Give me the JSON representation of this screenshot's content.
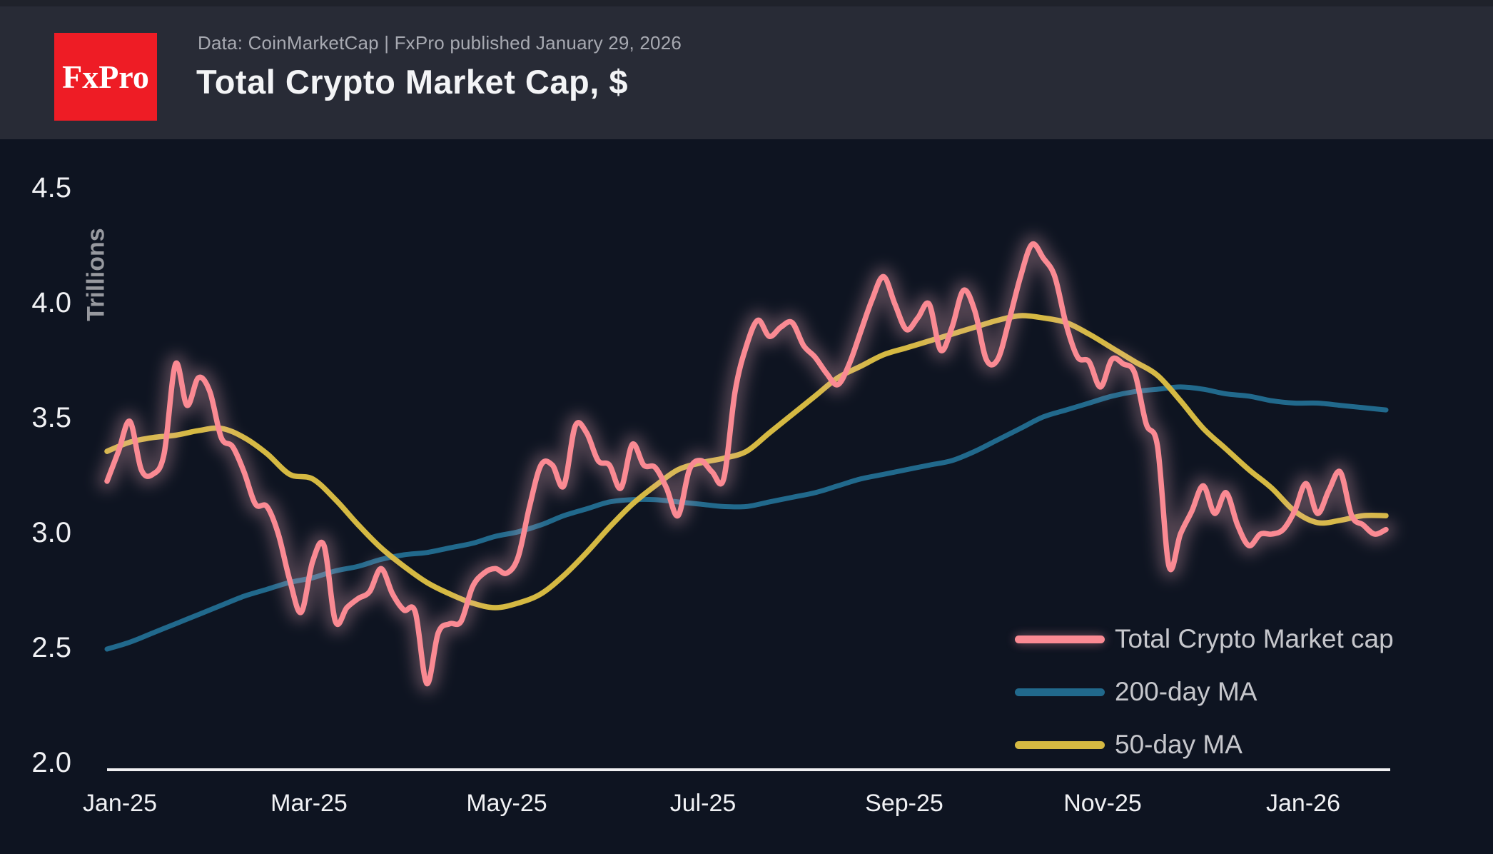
{
  "header": {
    "logo_text": "FxPro",
    "source_line": "Data: CoinMarketCap | FxPro published January 29, 2026",
    "title": "Total Crypto Market Cap, $"
  },
  "colors": {
    "background": "#0e1421",
    "header_bar": "#282b36",
    "logo_red": "#ee1c25",
    "axis_line": "#f0f0f2",
    "market_cap_pink": "#fa8a93",
    "market_cap_glow": "#efb0bd",
    "ma200_teal": "#21698c",
    "ma50_yellow": "#d5b942"
  },
  "chart_data": {
    "type": "line",
    "title": "Total Crypto Market Cap, $",
    "ylabel": "Trillions",
    "ylim": [
      2.0,
      4.5
    ],
    "grid": false,
    "legend_position": "bottom-right",
    "yticks": [
      "4.5",
      "4.0",
      "3.5",
      "3.0",
      "2.5",
      "2.0"
    ],
    "ytick_values": [
      4.5,
      4.0,
      3.5,
      3.0,
      2.5,
      2.0
    ],
    "xticks": [
      "Jan-25",
      "Mar-25",
      "May-25",
      "Jul-25",
      "Sep-25",
      "Nov-25",
      "Jan-26"
    ],
    "x_unit": "chart x pixel (Jan-25 tick = 168, ~4.54 px/day)",
    "series": [
      {
        "name": "Total Crypto Market cap",
        "color": "#fa8a93",
        "glow": true,
        "width": 7.5,
        "points": [
          [
            150,
            3.23
          ],
          [
            166,
            3.36
          ],
          [
            182,
            3.49
          ],
          [
            198,
            3.28
          ],
          [
            214,
            3.26
          ],
          [
            230,
            3.35
          ],
          [
            246,
            3.74
          ],
          [
            262,
            3.56
          ],
          [
            278,
            3.68
          ],
          [
            294,
            3.62
          ],
          [
            310,
            3.42
          ],
          [
            326,
            3.38
          ],
          [
            342,
            3.27
          ],
          [
            358,
            3.13
          ],
          [
            374,
            3.12
          ],
          [
            390,
            3.0
          ],
          [
            406,
            2.8
          ],
          [
            422,
            2.66
          ],
          [
            438,
            2.88
          ],
          [
            454,
            2.95
          ],
          [
            470,
            2.62
          ],
          [
            486,
            2.68
          ],
          [
            502,
            2.72
          ],
          [
            518,
            2.75
          ],
          [
            534,
            2.85
          ],
          [
            550,
            2.74
          ],
          [
            566,
            2.67
          ],
          [
            582,
            2.66
          ],
          [
            598,
            2.35
          ],
          [
            614,
            2.57
          ],
          [
            630,
            2.61
          ],
          [
            646,
            2.62
          ],
          [
            662,
            2.77
          ],
          [
            678,
            2.83
          ],
          [
            694,
            2.85
          ],
          [
            710,
            2.83
          ],
          [
            726,
            2.9
          ],
          [
            742,
            3.12
          ],
          [
            758,
            3.3
          ],
          [
            774,
            3.3
          ],
          [
            790,
            3.21
          ],
          [
            806,
            3.47
          ],
          [
            822,
            3.44
          ],
          [
            838,
            3.32
          ],
          [
            854,
            3.3
          ],
          [
            870,
            3.2
          ],
          [
            886,
            3.39
          ],
          [
            902,
            3.3
          ],
          [
            918,
            3.29
          ],
          [
            934,
            3.2
          ],
          [
            950,
            3.08
          ],
          [
            966,
            3.28
          ],
          [
            982,
            3.32
          ],
          [
            998,
            3.27
          ],
          [
            1014,
            3.24
          ],
          [
            1030,
            3.62
          ],
          [
            1046,
            3.82
          ],
          [
            1062,
            3.93
          ],
          [
            1078,
            3.86
          ],
          [
            1094,
            3.9
          ],
          [
            1110,
            3.92
          ],
          [
            1126,
            3.82
          ],
          [
            1142,
            3.77
          ],
          [
            1158,
            3.7
          ],
          [
            1174,
            3.65
          ],
          [
            1190,
            3.74
          ],
          [
            1206,
            3.88
          ],
          [
            1222,
            4.02
          ],
          [
            1238,
            4.12
          ],
          [
            1254,
            4.0
          ],
          [
            1270,
            3.89
          ],
          [
            1286,
            3.94
          ],
          [
            1302,
            4.0
          ],
          [
            1318,
            3.8
          ],
          [
            1334,
            3.9
          ],
          [
            1350,
            4.06
          ],
          [
            1366,
            3.97
          ],
          [
            1382,
            3.76
          ],
          [
            1398,
            3.76
          ],
          [
            1414,
            3.93
          ],
          [
            1430,
            4.12
          ],
          [
            1446,
            4.26
          ],
          [
            1462,
            4.2
          ],
          [
            1478,
            4.12
          ],
          [
            1494,
            3.91
          ],
          [
            1510,
            3.77
          ],
          [
            1526,
            3.75
          ],
          [
            1542,
            3.64
          ],
          [
            1558,
            3.76
          ],
          [
            1574,
            3.74
          ],
          [
            1590,
            3.7
          ],
          [
            1606,
            3.48
          ],
          [
            1622,
            3.38
          ],
          [
            1638,
            2.86
          ],
          [
            1654,
            3.0
          ],
          [
            1670,
            3.1
          ],
          [
            1686,
            3.21
          ],
          [
            1702,
            3.09
          ],
          [
            1718,
            3.18
          ],
          [
            1734,
            3.04
          ],
          [
            1750,
            2.95
          ],
          [
            1766,
            3.0
          ],
          [
            1782,
            3.0
          ],
          [
            1798,
            3.02
          ],
          [
            1814,
            3.1
          ],
          [
            1830,
            3.22
          ],
          [
            1846,
            3.09
          ],
          [
            1862,
            3.19
          ],
          [
            1878,
            3.27
          ],
          [
            1894,
            3.08
          ],
          [
            1910,
            3.04
          ],
          [
            1926,
            3.0
          ],
          [
            1942,
            3.02
          ]
        ]
      },
      {
        "name": "200-day MA",
        "color": "#21698c",
        "glow": false,
        "width": 7,
        "points": [
          [
            150,
            2.5
          ],
          [
            182,
            2.53
          ],
          [
            214,
            2.57
          ],
          [
            246,
            2.61
          ],
          [
            278,
            2.65
          ],
          [
            310,
            2.69
          ],
          [
            342,
            2.73
          ],
          [
            374,
            2.76
          ],
          [
            406,
            2.79
          ],
          [
            438,
            2.81
          ],
          [
            470,
            2.84
          ],
          [
            502,
            2.86
          ],
          [
            534,
            2.89
          ],
          [
            566,
            2.91
          ],
          [
            598,
            2.92
          ],
          [
            630,
            2.94
          ],
          [
            662,
            2.96
          ],
          [
            694,
            2.99
          ],
          [
            726,
            3.01
          ],
          [
            758,
            3.04
          ],
          [
            790,
            3.08
          ],
          [
            822,
            3.11
          ],
          [
            854,
            3.14
          ],
          [
            886,
            3.15
          ],
          [
            918,
            3.15
          ],
          [
            950,
            3.14
          ],
          [
            982,
            3.13
          ],
          [
            1014,
            3.12
          ],
          [
            1046,
            3.12
          ],
          [
            1078,
            3.14
          ],
          [
            1110,
            3.16
          ],
          [
            1142,
            3.18
          ],
          [
            1174,
            3.21
          ],
          [
            1206,
            3.24
          ],
          [
            1238,
            3.26
          ],
          [
            1270,
            3.28
          ],
          [
            1302,
            3.3
          ],
          [
            1334,
            3.32
          ],
          [
            1366,
            3.36
          ],
          [
            1398,
            3.41
          ],
          [
            1430,
            3.46
          ],
          [
            1462,
            3.51
          ],
          [
            1494,
            3.54
          ],
          [
            1526,
            3.57
          ],
          [
            1558,
            3.6
          ],
          [
            1590,
            3.62
          ],
          [
            1622,
            3.63
          ],
          [
            1654,
            3.64
          ],
          [
            1686,
            3.63
          ],
          [
            1718,
            3.61
          ],
          [
            1750,
            3.6
          ],
          [
            1782,
            3.58
          ],
          [
            1814,
            3.57
          ],
          [
            1846,
            3.57
          ],
          [
            1878,
            3.56
          ],
          [
            1910,
            3.55
          ],
          [
            1942,
            3.54
          ]
        ]
      },
      {
        "name": "50-day MA",
        "color": "#d5b942",
        "glow": false,
        "width": 7.5,
        "points": [
          [
            150,
            3.36
          ],
          [
            182,
            3.4
          ],
          [
            214,
            3.42
          ],
          [
            246,
            3.43
          ],
          [
            278,
            3.45
          ],
          [
            310,
            3.46
          ],
          [
            342,
            3.42
          ],
          [
            374,
            3.35
          ],
          [
            406,
            3.26
          ],
          [
            438,
            3.24
          ],
          [
            470,
            3.15
          ],
          [
            502,
            3.04
          ],
          [
            534,
            2.94
          ],
          [
            566,
            2.86
          ],
          [
            598,
            2.79
          ],
          [
            630,
            2.74
          ],
          [
            662,
            2.7
          ],
          [
            694,
            2.68
          ],
          [
            726,
            2.7
          ],
          [
            758,
            2.74
          ],
          [
            790,
            2.82
          ],
          [
            822,
            2.92
          ],
          [
            854,
            3.03
          ],
          [
            886,
            3.13
          ],
          [
            918,
            3.21
          ],
          [
            950,
            3.28
          ],
          [
            982,
            3.31
          ],
          [
            1014,
            3.33
          ],
          [
            1046,
            3.36
          ],
          [
            1078,
            3.44
          ],
          [
            1110,
            3.52
          ],
          [
            1142,
            3.6
          ],
          [
            1174,
            3.68
          ],
          [
            1206,
            3.73
          ],
          [
            1238,
            3.78
          ],
          [
            1270,
            3.81
          ],
          [
            1302,
            3.84
          ],
          [
            1334,
            3.87
          ],
          [
            1366,
            3.9
          ],
          [
            1398,
            3.93
          ],
          [
            1430,
            3.95
          ],
          [
            1462,
            3.94
          ],
          [
            1494,
            3.92
          ],
          [
            1526,
            3.87
          ],
          [
            1558,
            3.81
          ],
          [
            1590,
            3.75
          ],
          [
            1622,
            3.69
          ],
          [
            1654,
            3.58
          ],
          [
            1686,
            3.46
          ],
          [
            1718,
            3.37
          ],
          [
            1750,
            3.28
          ],
          [
            1782,
            3.2
          ],
          [
            1814,
            3.1
          ],
          [
            1846,
            3.05
          ],
          [
            1878,
            3.06
          ],
          [
            1910,
            3.08
          ],
          [
            1942,
            3.08
          ]
        ]
      }
    ]
  }
}
